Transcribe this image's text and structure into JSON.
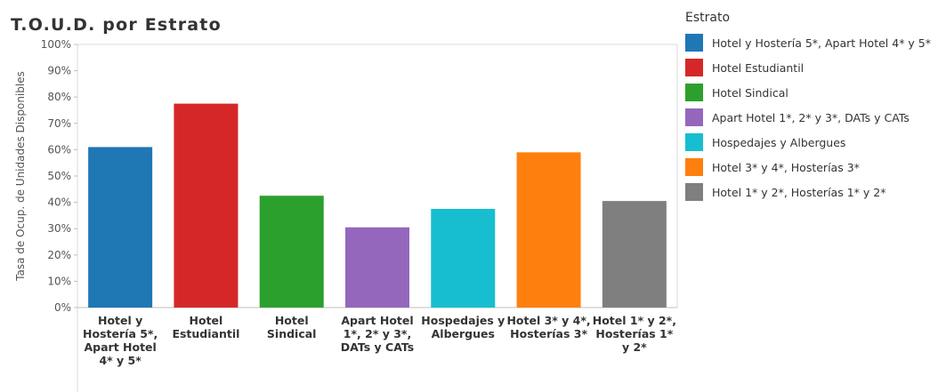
{
  "chart_data": {
    "type": "bar",
    "title": "T.O.U.D. por Estrato",
    "ylabel": "Tasa de Ocup. de Unidades Disponibles",
    "xlabel": "",
    "ylim": [
      0,
      100
    ],
    "yticks": [
      "0%",
      "10%",
      "20%",
      "30%",
      "40%",
      "50%",
      "60%",
      "70%",
      "80%",
      "90%",
      "100%"
    ],
    "grid": false,
    "legend_position": "right",
    "legend_title": "Estrato",
    "categories": [
      [
        "Hotel y",
        "Hostería 5*,",
        "Apart Hotel",
        "4* y 5*"
      ],
      [
        "Hotel",
        "Estudiantil"
      ],
      [
        "Hotel",
        "Sindical"
      ],
      [
        "Apart Hotel",
        "1*, 2* y 3*,",
        "DATs y CATs"
      ],
      [
        "Hospedajes y",
        "Albergues"
      ],
      [
        "Hotel 3* y 4*,",
        "Hosterías 3*"
      ],
      [
        "Hotel 1* y 2*,",
        "Hosterías 1*",
        "y 2*"
      ]
    ],
    "legend": [
      "Hotel y Hostería 5*, Apart Hotel 4* y 5*",
      "Hotel Estudiantil",
      "Hotel Sindical",
      "Apart Hotel 1*, 2* y 3*, DATs y CATs",
      "Hospedajes y Albergues",
      "Hotel 3* y 4*, Hosterías 3*",
      "Hotel 1* y 2*, Hosterías 1* y 2*"
    ],
    "values": [
      61,
      77.5,
      42.5,
      30.5,
      37.5,
      59,
      40.5
    ],
    "colors": [
      "#1f77b4",
      "#d62728",
      "#2ca02c",
      "#9467bd",
      "#17becf",
      "#ff7f0e",
      "#7f7f7f"
    ]
  }
}
